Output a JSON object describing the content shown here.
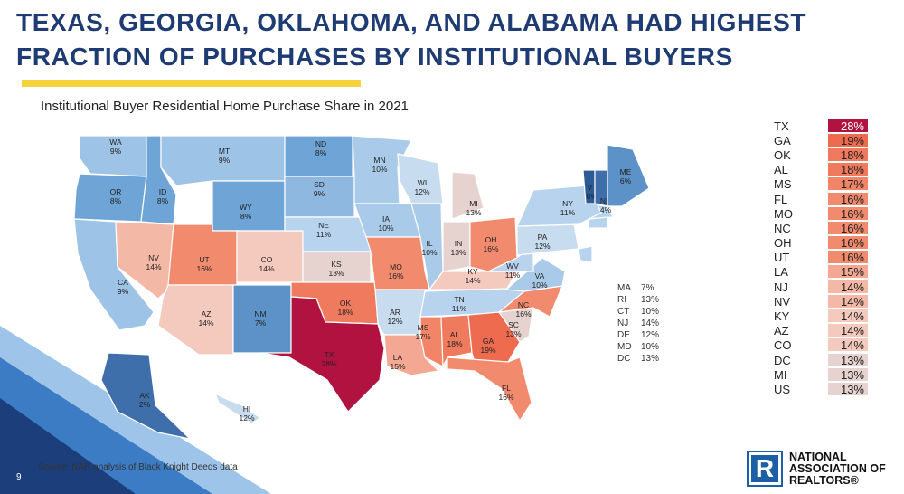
{
  "headline": {
    "line1": "TEXAS, GEORGIA, OKLAHOMA, AND ALABAMA HAD HIGHEST",
    "line2": "FRACTION OF PURCHASES BY INSTITUTIONAL BUYERS"
  },
  "subtitle": "Institutional Buyer Residential Home Purchase Share in 2021",
  "states": [
    {
      "code": "WA",
      "value": "9%",
      "color": "#9dc3e6"
    },
    {
      "code": "OR",
      "value": "8%",
      "color": "#6fa5d6"
    },
    {
      "code": "CA",
      "value": "9%",
      "color": "#9dc3e6"
    },
    {
      "code": "ID",
      "value": "8%",
      "color": "#6fa5d6"
    },
    {
      "code": "NV",
      "value": "14%",
      "color": "#f4b8a6"
    },
    {
      "code": "MT",
      "value": "9%",
      "color": "#9dc3e6"
    },
    {
      "code": "WY",
      "value": "8%",
      "color": "#6fa5d6"
    },
    {
      "code": "UT",
      "value": "16%",
      "color": "#f28b6e"
    },
    {
      "code": "CO",
      "value": "14%",
      "color": "#f4c9be"
    },
    {
      "code": "AZ",
      "value": "14%",
      "color": "#f4c9be"
    },
    {
      "code": "NM",
      "value": "7%",
      "color": "#5d92c8"
    },
    {
      "code": "ND",
      "value": "8%",
      "color": "#6fa5d6"
    },
    {
      "code": "SD",
      "value": "9%",
      "color": "#8fb8e0"
    },
    {
      "code": "NE",
      "value": "11%",
      "color": "#b7d3ee"
    },
    {
      "code": "KS",
      "value": "13%",
      "color": "#e6d3d0"
    },
    {
      "code": "OK",
      "value": "18%",
      "color": "#f07a5d"
    },
    {
      "code": "TX",
      "value": "28%",
      "color": "#b2123f"
    },
    {
      "code": "MN",
      "value": "10%",
      "color": "#a9cbe9"
    },
    {
      "code": "IA",
      "value": "10%",
      "color": "#a9cbe9"
    },
    {
      "code": "MO",
      "value": "16%",
      "color": "#f28b6e"
    },
    {
      "code": "AR",
      "value": "12%",
      "color": "#c8dcef"
    },
    {
      "code": "LA",
      "value": "15%",
      "color": "#f4a792"
    },
    {
      "code": "WI",
      "value": "12%",
      "color": "#c8dcef"
    },
    {
      "code": "IL",
      "value": "10%",
      "color": "#a9cbe9"
    },
    {
      "code": "MI",
      "value": "13%",
      "color": "#e6d3d0"
    },
    {
      "code": "IN",
      "value": "13%",
      "color": "#e6d3d0"
    },
    {
      "code": "OH",
      "value": "16%",
      "color": "#f28b6e"
    },
    {
      "code": "KY",
      "value": "14%",
      "color": "#f4c9be"
    },
    {
      "code": "TN",
      "value": "11%",
      "color": "#b7d3ee"
    },
    {
      "code": "MS",
      "value": "17%",
      "color": "#f28467"
    },
    {
      "code": "AL",
      "value": "18%",
      "color": "#f07a5d"
    },
    {
      "code": "GA",
      "value": "19%",
      "color": "#ee6b50"
    },
    {
      "code": "FL",
      "value": "16%",
      "color": "#f28b6e"
    },
    {
      "code": "SC",
      "value": "13%",
      "color": "#e6d3d0"
    },
    {
      "code": "NC",
      "value": "16%",
      "color": "#f28b6e"
    },
    {
      "code": "VA",
      "value": "10%",
      "color": "#a9cbe9"
    },
    {
      "code": "WV",
      "value": "11%",
      "color": "#b7d3ee"
    },
    {
      "code": "PA",
      "value": "12%",
      "color": "#c8dcef"
    },
    {
      "code": "NY",
      "value": "11%",
      "color": "#b7d3ee"
    },
    {
      "code": "VT",
      "value": "0%",
      "color": "#2b5a96"
    },
    {
      "code": "NH",
      "value": "4%",
      "color": "#3e6fab"
    },
    {
      "code": "ME",
      "value": "6%",
      "color": "#5d92c8"
    },
    {
      "code": "AK",
      "value": "2%",
      "color": "#3e6fab"
    },
    {
      "code": "HI",
      "value": "12%",
      "color": "#c8dcef"
    }
  ],
  "small_states": [
    {
      "code": "MA",
      "value": "7%"
    },
    {
      "code": "RI",
      "value": "13%"
    },
    {
      "code": "CT",
      "value": "10%"
    },
    {
      "code": "NJ",
      "value": "14%"
    },
    {
      "code": "DE",
      "value": "12%"
    },
    {
      "code": "MD",
      "value": "10%"
    },
    {
      "code": "DC",
      "value": "13%"
    }
  ],
  "ranking": [
    {
      "state": "TX",
      "value": "28%",
      "color": "#b2123f"
    },
    {
      "state": "GA",
      "value": "19%",
      "color": "#ee6b50"
    },
    {
      "state": "OK",
      "value": "18%",
      "color": "#f07a5d"
    },
    {
      "state": "AL",
      "value": "18%",
      "color": "#f07a5d"
    },
    {
      "state": "MS",
      "value": "17%",
      "color": "#f28467"
    },
    {
      "state": "FL",
      "value": "16%",
      "color": "#f28b6e"
    },
    {
      "state": "MO",
      "value": "16%",
      "color": "#f28b6e"
    },
    {
      "state": "NC",
      "value": "16%",
      "color": "#f28b6e"
    },
    {
      "state": "OH",
      "value": "16%",
      "color": "#f28b6e"
    },
    {
      "state": "UT",
      "value": "16%",
      "color": "#f28b6e"
    },
    {
      "state": "LA",
      "value": "15%",
      "color": "#f4a792"
    },
    {
      "state": "NJ",
      "value": "14%",
      "color": "#f4b8a6"
    },
    {
      "state": "NV",
      "value": "14%",
      "color": "#f4b8a6"
    },
    {
      "state": "KY",
      "value": "14%",
      "color": "#f4c9be"
    },
    {
      "state": "AZ",
      "value": "14%",
      "color": "#f4c9be"
    },
    {
      "state": "CO",
      "value": "14%",
      "color": "#f4c9be"
    },
    {
      "state": "DC",
      "value": "13%",
      "color": "#e6d3d0"
    },
    {
      "state": "MI",
      "value": "13%",
      "color": "#e6d3d0"
    },
    {
      "state": "US",
      "value": "13%",
      "color": "#e6d3d0"
    }
  ],
  "source": "Source: NAR analysis of Black Knight Deeds data",
  "page_number": "9",
  "logo": {
    "mark": "R",
    "line1": "NATIONAL",
    "line2": "ASSOCIATION OF",
    "line3": "REALTORS®"
  }
}
